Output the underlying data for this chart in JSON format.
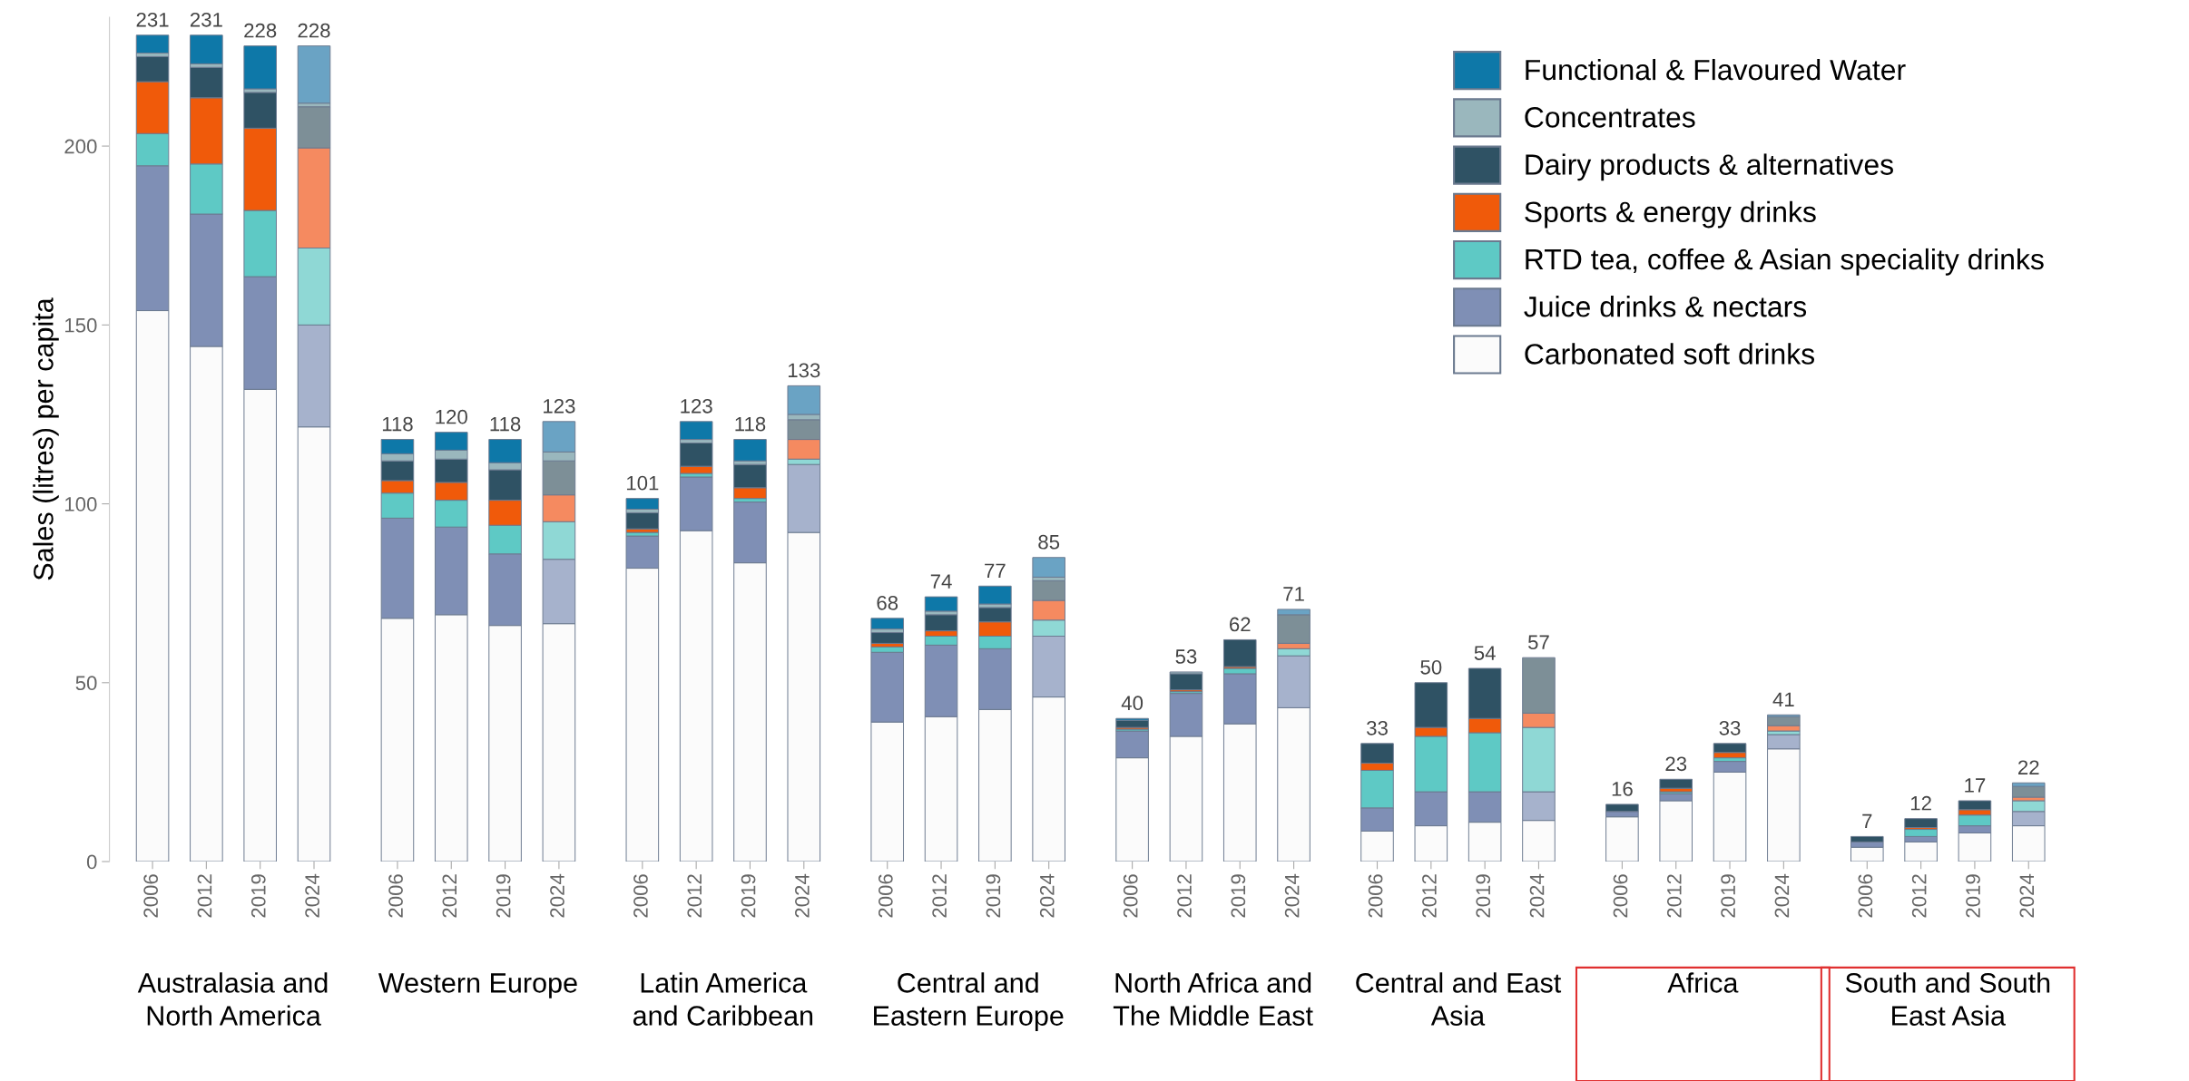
{
  "chart_data": {
    "type": "bar",
    "stacked": true,
    "ylabel": "Sales (litres) per capita",
    "categories": [
      "2006",
      "2012",
      "2019",
      "2024",
      "2006",
      "2012",
      "2019",
      "2024",
      "2006",
      "2012",
      "2019",
      "2024",
      "2006",
      "2012",
      "2019",
      "2024",
      "2006",
      "2012",
      "2019",
      "2024",
      "2006",
      "2012",
      "2019",
      "2024",
      "2006",
      "2012",
      "2019",
      "2024",
      "2006",
      "2012",
      "2019",
      "2024"
    ],
    "series": [
      {
        "name": "Carbonated soft drinks",
        "color": "#fbfbfb",
        "values": [
          154,
          144,
          132,
          121.5,
          68,
          69,
          66,
          66.5,
          82,
          92.5,
          83.5,
          92,
          39,
          40.5,
          42.5,
          46,
          29,
          35,
          38.5,
          43,
          8.5,
          10,
          11,
          11.5,
          12.5,
          17,
          25,
          31.5,
          4,
          5.5,
          8,
          10
        ]
      },
      {
        "name": "Juice drinks & nectars",
        "color": "#7f8fb5",
        "colors": [
          "#7f8fb5",
          "#7f8fb5",
          "#7f8fb5",
          "#a6b2cc",
          "#7f8fb5",
          "#7f8fb5",
          "#7f8fb5",
          "#a6b2cc",
          "#7f8fb5",
          "#7f8fb5",
          "#7f8fb5",
          "#a6b2cc",
          "#7f8fb5",
          "#7f8fb5",
          "#7f8fb5",
          "#a6b2cc",
          "#7f8fb5",
          "#7f8fb5",
          "#7f8fb5",
          "#a6b2cc",
          "#7f8fb5",
          "#7f8fb5",
          "#7f8fb5",
          "#a6b2cc",
          "#7f8fb5",
          "#7f8fb5",
          "#7f8fb5",
          "#a6b2cc",
          "#7f8fb5",
          "#7f8fb5",
          "#7f8fb5",
          "#a6b2cc"
        ],
        "values": [
          40.5,
          37,
          31.5,
          28.5,
          28,
          24.5,
          20,
          18,
          9,
          15,
          17,
          19,
          19.5,
          20,
          17,
          17,
          7.5,
          12,
          14,
          14.5,
          6.5,
          9.5,
          8.5,
          8,
          1.5,
          2,
          3,
          4,
          1.5,
          1.5,
          2,
          4
        ]
      },
      {
        "name": "RTD tea, coffee & Asian speciality drinks",
        "color": "#5ec9c5",
        "colors": [
          "#5ec9c5",
          "#5ec9c5",
          "#5ec9c5",
          "#8fd8d5",
          "#5ec9c5",
          "#5ec9c5",
          "#5ec9c5",
          "#8fd8d5",
          "#5ec9c5",
          "#5ec9c5",
          "#5ec9c5",
          "#8fd8d5",
          "#5ec9c5",
          "#5ec9c5",
          "#5ec9c5",
          "#8fd8d5",
          "#5ec9c5",
          "#5ec9c5",
          "#5ec9c5",
          "#8fd8d5",
          "#5ec9c5",
          "#5ec9c5",
          "#5ec9c5",
          "#8fd8d5",
          "#5ec9c5",
          "#5ec9c5",
          "#5ec9c5",
          "#8fd8d5",
          "#5ec9c5",
          "#5ec9c5",
          "#5ec9c5",
          "#8fd8d5"
        ],
        "values": [
          9,
          14,
          18.5,
          21.5,
          7,
          7.5,
          8,
          10.5,
          1,
          1,
          1,
          1.5,
          1.5,
          2.5,
          3.5,
          4.5,
          0.5,
          0.5,
          1.5,
          2,
          10.5,
          15.5,
          16.5,
          18,
          0,
          0.5,
          1,
          1,
          0,
          2,
          3,
          3
        ]
      },
      {
        "name": "Sports & energy drinks",
        "color": "#f05a0a",
        "colors": [
          "#f05a0a",
          "#f05a0a",
          "#f05a0a",
          "#f58a60",
          "#f05a0a",
          "#f05a0a",
          "#f05a0a",
          "#f58a60",
          "#f05a0a",
          "#f05a0a",
          "#f05a0a",
          "#f58a60",
          "#f05a0a",
          "#f05a0a",
          "#f05a0a",
          "#f58a60",
          "#f05a0a",
          "#f05a0a",
          "#f05a0a",
          "#f58a60",
          "#f05a0a",
          "#f05a0a",
          "#f05a0a",
          "#f58a60",
          "#f05a0a",
          "#f05a0a",
          "#f05a0a",
          "#f58a60",
          "#f05a0a",
          "#f05a0a",
          "#f05a0a",
          "#f58a60"
        ],
        "values": [
          14.5,
          18.5,
          23,
          28,
          3.5,
          5,
          7,
          7.5,
          1,
          2,
          3,
          5.5,
          1,
          1.5,
          4,
          5.5,
          0.5,
          0.5,
          0.5,
          1.5,
          2,
          2.5,
          4,
          4,
          0,
          1,
          1.5,
          1.5,
          0,
          0.5,
          1.5,
          1
        ]
      },
      {
        "name": "Dairy products & alternatives",
        "color": "#2f5264",
        "colors": [
          "#2f5264",
          "#2f5264",
          "#2f5264",
          "#7d8f97",
          "#2f5264",
          "#2f5264",
          "#2f5264",
          "#7d8f97",
          "#2f5264",
          "#2f5264",
          "#2f5264",
          "#7d8f97",
          "#2f5264",
          "#2f5264",
          "#2f5264",
          "#7d8f97",
          "#2f5264",
          "#2f5264",
          "#2f5264",
          "#7d8f97",
          "#2f5264",
          "#2f5264",
          "#2f5264",
          "#7d8f97",
          "#2f5264",
          "#2f5264",
          "#2f5264",
          "#7d8f97",
          "#2f5264",
          "#2f5264",
          "#2f5264",
          "#7d8f97"
        ],
        "values": [
          7,
          8.5,
          10,
          11.5,
          5.5,
          6.5,
          8.5,
          9.5,
          4.5,
          6.5,
          6.5,
          5.5,
          3,
          4.5,
          4,
          5.5,
          2,
          4.5,
          7.5,
          8,
          5.5,
          12.5,
          14,
          15.5,
          2,
          2.5,
          2.5,
          2.5,
          1.5,
          2.5,
          2.5,
          3
        ]
      },
      {
        "name": "Concentrates",
        "color": "#9ab7bd",
        "values": [
          1,
          1,
          1,
          1,
          2,
          2.5,
          2,
          2.5,
          1,
          1,
          1,
          1.5,
          1,
          1,
          1,
          1,
          0,
          0.5,
          0,
          null,
          0,
          0,
          0,
          0,
          0,
          0,
          0,
          0,
          0,
          0,
          0,
          0
        ]
      },
      {
        "name": "Functional & Flavoured Water",
        "color": "#0e78a8",
        "colors": [
          "#0e78a8",
          "#0e78a8",
          "#0e78a8",
          "#6aa3c4",
          "#0e78a8",
          "#0e78a8",
          "#0e78a8",
          "#6aa3c4",
          "#0e78a8",
          "#0e78a8",
          "#0e78a8",
          "#6aa3c4",
          "#0e78a8",
          "#0e78a8",
          "#0e78a8",
          "#6aa3c4",
          "#0e78a8",
          "#0e78a8",
          "#0e78a8",
          "#6aa3c4",
          "#0e78a8",
          "#0e78a8",
          "#0e78a8",
          "#6aa3c4",
          "#0e78a8",
          "#0e78a8",
          "#0e78a8",
          "#6aa3c4",
          "#0e78a8",
          "#0e78a8",
          "#0e78a8",
          "#6aa3c4"
        ],
        "values": [
          5,
          8,
          12,
          16,
          4,
          5,
          6.5,
          8.5,
          3,
          5,
          6,
          8,
          3,
          4,
          5,
          5.5,
          0.5,
          0,
          0,
          1.5,
          0,
          0,
          0,
          0,
          0,
          0,
          0,
          0.5,
          0,
          0,
          0,
          1
        ]
      }
    ],
    "totals": [
      "231",
      "231",
      "228",
      "228",
      "118",
      "120",
      "118",
      "123",
      "101",
      "123",
      "118",
      "133",
      "68",
      "74",
      "77",
      "85",
      "40",
      "53",
      "62",
      "71",
      "33",
      "50",
      "54",
      "57",
      "16",
      "23",
      "33",
      "41",
      "7",
      "12",
      "17",
      "22"
    ],
    "annotations": [
      "Australasia and\nNorth America",
      "Western Europe",
      "Latin America\nand Caribbean",
      "Central and\nEastern Europe",
      "North Africa and\nThe Middle East",
      "Central and East\nAsia",
      "Africa",
      "South and South\nEast Asia"
    ],
    "ylim": [
      0,
      236
    ],
    "yticks": [
      0,
      50,
      100,
      150,
      200
    ],
    "legend": "top right"
  }
}
